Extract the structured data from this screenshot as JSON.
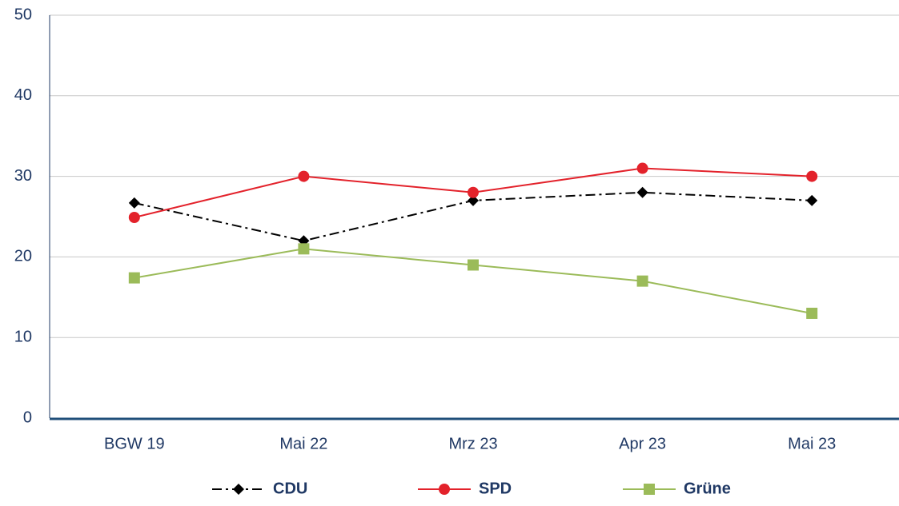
{
  "chart_data": {
    "type": "line",
    "categories": [
      "BGW 19",
      "Mai 22",
      "Mrz 23",
      "Apr 23",
      "Mai 23"
    ],
    "series": [
      {
        "name": "CDU",
        "color": "#000000",
        "marker": "diamond",
        "dash": "dashdot",
        "values": [
          26.7,
          22,
          27,
          28,
          27
        ]
      },
      {
        "name": "SPD",
        "color": "#e3222b",
        "marker": "circle",
        "dash": "solid",
        "values": [
          24.9,
          30,
          28,
          31,
          30
        ]
      },
      {
        "name": "Grüne",
        "color": "#9bbb59",
        "marker": "square",
        "dash": "solid",
        "values": [
          17.4,
          21,
          19,
          17,
          13
        ]
      }
    ],
    "ylim": [
      0,
      50
    ],
    "yticks": [
      0,
      10,
      20,
      30,
      40,
      50
    ],
    "grid": true,
    "legend": "bottom"
  }
}
